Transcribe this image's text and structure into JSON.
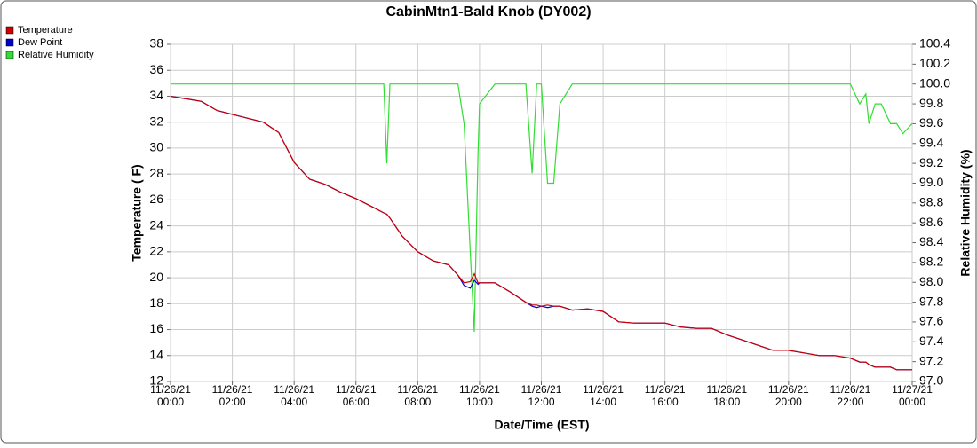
{
  "chart_data": {
    "type": "line",
    "title": "CabinMtn1-Bald Knob (DY002)",
    "x_label": "Date/Time (EST)",
    "y_label": "Temperature ( F)",
    "y2_label": "Relative Humidity (%)",
    "x": [
      0,
      0.5,
      1,
      1.5,
      2,
      2.5,
      3,
      3.5,
      4,
      4.5,
      5,
      5.5,
      6,
      6.5,
      6.9,
      7.0,
      7.1,
      7.5,
      8,
      8.5,
      9,
      9.3,
      9.5,
      9.7,
      9.83,
      9.95,
      10,
      10.5,
      11,
      11.5,
      11.7,
      11.85,
      12,
      12.2,
      12.4,
      12.6,
      13,
      13.5,
      14,
      14.5,
      15,
      15.5,
      16,
      16.5,
      17,
      17.5,
      18,
      18.5,
      19,
      19.5,
      20,
      20.5,
      21,
      21.5,
      22,
      22.3,
      22.5,
      22.6,
      22.8,
      23,
      23.3,
      23.5,
      23.7,
      24
    ],
    "series": [
      {
        "name": "Temperature",
        "color": "#cc0000",
        "values": [
          34.0,
          33.8,
          33.6,
          32.9,
          32.6,
          32.3,
          32.0,
          31.2,
          28.9,
          27.6,
          27.2,
          26.6,
          26.1,
          25.5,
          25.0,
          24.9,
          24.6,
          23.2,
          22.0,
          21.3,
          21.0,
          20.2,
          19.6,
          19.7,
          20.3,
          19.6,
          19.6,
          19.6,
          18.9,
          18.1,
          17.9,
          17.9,
          17.8,
          17.9,
          17.8,
          17.8,
          17.5,
          17.6,
          17.4,
          16.6,
          16.5,
          16.5,
          16.5,
          16.2,
          16.1,
          16.1,
          15.6,
          15.2,
          14.8,
          14.4,
          14.4,
          14.2,
          14.0,
          14.0,
          13.8,
          13.5,
          13.5,
          13.3,
          13.1,
          13.1,
          13.1,
          12.9,
          12.9,
          12.9
        ]
      },
      {
        "name": "Dew Point",
        "color": "#0000cc",
        "values": [
          34.0,
          33.8,
          33.6,
          32.9,
          32.6,
          32.3,
          32.0,
          31.2,
          28.9,
          27.6,
          27.2,
          26.6,
          26.1,
          25.5,
          25.0,
          24.9,
          24.6,
          23.2,
          22.0,
          21.3,
          21.0,
          20.2,
          19.4,
          19.2,
          19.8,
          19.5,
          19.6,
          19.6,
          18.9,
          18.1,
          17.8,
          17.7,
          17.8,
          17.7,
          17.8,
          17.8,
          17.5,
          17.6,
          17.4,
          16.6,
          16.5,
          16.5,
          16.5,
          16.2,
          16.1,
          16.1,
          15.6,
          15.2,
          14.8,
          14.4,
          14.4,
          14.2,
          14.0,
          14.0,
          13.8,
          13.5,
          13.5,
          13.3,
          13.1,
          13.1,
          13.1,
          12.9,
          12.9,
          12.9
        ]
      },
      {
        "name": "Relative Humidity",
        "color": "#33dd33",
        "axis": "y2",
        "values": [
          100,
          100,
          100,
          100,
          100,
          100,
          100,
          100,
          100,
          100,
          100,
          100,
          100,
          100,
          100,
          99.2,
          100,
          100,
          100,
          100,
          100,
          100,
          99.6,
          98.3,
          97.5,
          99.3,
          99.8,
          100,
          100,
          100,
          99.1,
          100,
          100,
          99.0,
          99.0,
          99.8,
          100,
          100,
          100,
          100,
          100,
          100,
          100,
          100,
          100,
          100,
          100,
          100,
          100,
          100,
          100,
          100,
          100,
          100,
          100,
          99.8,
          99.9,
          99.6,
          99.8,
          99.8,
          99.6,
          99.6,
          99.5,
          99.6
        ]
      }
    ],
    "xlim": [
      0,
      24
    ],
    "xticks": [
      {
        "value": 0,
        "label": "11/26/21\n00:00"
      },
      {
        "value": 2,
        "label": "11/26/21\n02:00"
      },
      {
        "value": 4,
        "label": "11/26/21\n04:00"
      },
      {
        "value": 6,
        "label": "11/26/21\n06:00"
      },
      {
        "value": 8,
        "label": "11/26/21\n08:00"
      },
      {
        "value": 10,
        "label": "11/26/21\n10:00"
      },
      {
        "value": 12,
        "label": "11/26/21\n12:00"
      },
      {
        "value": 14,
        "label": "11/26/21\n14:00"
      },
      {
        "value": 16,
        "label": "11/26/21\n16:00"
      },
      {
        "value": 18,
        "label": "11/26/21\n18:00"
      },
      {
        "value": 20,
        "label": "11/26/21\n20:00"
      },
      {
        "value": 22,
        "label": "11/26/21\n22:00"
      },
      {
        "value": 24,
        "label": "11/27/21\n00:00"
      }
    ],
    "ylim": [
      12,
      38
    ],
    "yticks": [
      12,
      14,
      16,
      18,
      20,
      22,
      24,
      26,
      28,
      30,
      32,
      34,
      36,
      38
    ],
    "y2lim": [
      97.0,
      100.4
    ],
    "y2ticks": [
      {
        "value": 97.0,
        "label": "97.0"
      },
      97.2,
      97.4,
      97.6,
      97.8,
      {
        "value": 98.0,
        "label": "98.0"
      },
      98.2,
      98.4,
      98.6,
      98.8,
      {
        "value": 99.0,
        "label": "99.0"
      },
      99.2,
      99.4,
      99.6,
      99.8,
      {
        "value": 100.0,
        "label": "100.0"
      },
      100.2,
      100.4
    ],
    "grid": true,
    "legend": "top-left"
  }
}
